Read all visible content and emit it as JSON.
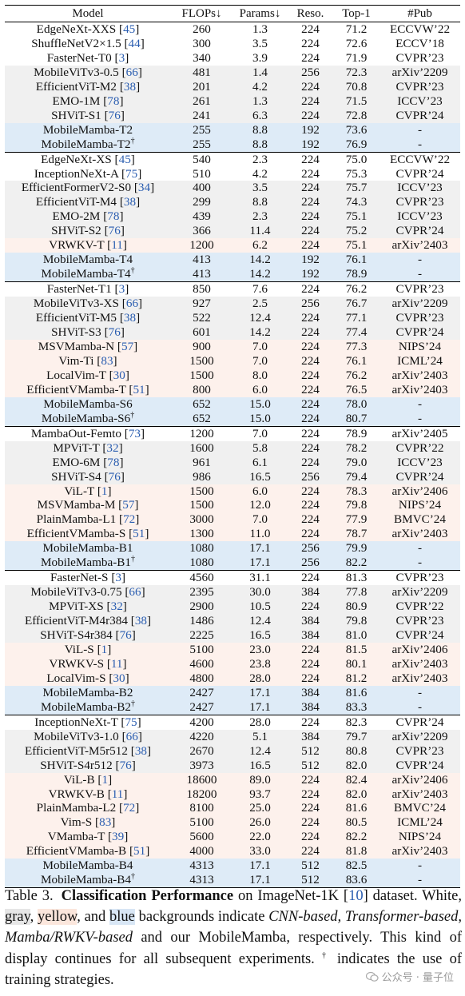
{
  "headers": [
    "Model",
    "FLOPs↓",
    "Params↓",
    "Reso.",
    "Top-1",
    "#Pub"
  ],
  "groups": [
    {
      "rows": [
        {
          "model": "EdgeNeXt-XXS",
          "cite": "45",
          "sup": "",
          "flops": "260",
          "params": "1.3",
          "reso": "224",
          "top1": "71.2",
          "pub": "ECCVW’22",
          "bg": "cnn",
          "bold": false
        },
        {
          "model": "ShuffleNetV2×1.5",
          "cite": "44",
          "sup": "",
          "flops": "300",
          "params": "3.5",
          "reso": "224",
          "top1": "72.6",
          "pub": "ECCV’18",
          "bg": "cnn",
          "bold": false
        },
        {
          "model": "FasterNet-T0",
          "cite": "3",
          "sup": "",
          "flops": "340",
          "params": "3.9",
          "reso": "224",
          "top1": "71.9",
          "pub": "CVPR’23",
          "bg": "cnn",
          "bold": false
        },
        {
          "model": "MobileViTv3-0.5",
          "cite": "66",
          "sup": "",
          "flops": "481",
          "params": "1.4",
          "reso": "256",
          "top1": "72.3",
          "pub": "arXiv’2209",
          "bg": "tr",
          "bold": false
        },
        {
          "model": "EfficientViT-M2",
          "cite": "38",
          "sup": "",
          "flops": "201",
          "params": "4.2",
          "reso": "224",
          "top1": "70.8",
          "pub": "CVPR’23",
          "bg": "tr",
          "bold": false
        },
        {
          "model": "EMO-1M",
          "cite": "78",
          "sup": "",
          "flops": "261",
          "params": "1.3",
          "reso": "224",
          "top1": "71.5",
          "pub": "ICCV’23",
          "bg": "tr",
          "bold": false
        },
        {
          "model": "SHViT-S1",
          "cite": "76",
          "sup": "",
          "flops": "241",
          "params": "6.3",
          "reso": "224",
          "top1": "72.8",
          "pub": "CVPR’24",
          "bg": "tr",
          "bold": false
        },
        {
          "model": "MobileMamba-T2",
          "cite": "",
          "sup": "",
          "flops": "255",
          "params": "8.8",
          "reso": "192",
          "top1": "73.6",
          "pub": "-",
          "bg": "ours",
          "bold": true
        },
        {
          "model": "MobileMamba-T2",
          "cite": "",
          "sup": "†",
          "flops": "255",
          "params": "8.8",
          "reso": "192",
          "top1": "76.9",
          "pub": "-",
          "bg": "ours",
          "bold": true
        }
      ]
    },
    {
      "rows": [
        {
          "model": "EdgeNeXt-XS",
          "cite": "45",
          "sup": "",
          "flops": "540",
          "params": "2.3",
          "reso": "224",
          "top1": "75.0",
          "pub": "ECCVW’22",
          "bg": "cnn",
          "bold": false
        },
        {
          "model": "InceptionNeXt-A",
          "cite": "75",
          "sup": "",
          "flops": "510",
          "params": "4.2",
          "reso": "224",
          "top1": "75.3",
          "pub": "CVPR’24",
          "bg": "cnn",
          "bold": false
        },
        {
          "model": "EfficientFormerV2-S0",
          "cite": "34",
          "sup": "",
          "flops": "400",
          "params": "3.5",
          "reso": "224",
          "top1": "75.7",
          "pub": "ICCV’23",
          "bg": "tr",
          "bold": false
        },
        {
          "model": "EfficientViT-M4",
          "cite": "38",
          "sup": "",
          "flops": "299",
          "params": "8.8",
          "reso": "224",
          "top1": "74.3",
          "pub": "CVPR’23",
          "bg": "tr",
          "bold": false
        },
        {
          "model": "EMO-2M",
          "cite": "78",
          "sup": "",
          "flops": "439",
          "params": "2.3",
          "reso": "224",
          "top1": "75.1",
          "pub": "ICCV’23",
          "bg": "tr",
          "bold": false
        },
        {
          "model": "SHViT-S2",
          "cite": "76",
          "sup": "",
          "flops": "366",
          "params": "11.4",
          "reso": "224",
          "top1": "75.2",
          "pub": "CVPR’24",
          "bg": "tr",
          "bold": false
        },
        {
          "model": "VRWKV-T",
          "cite": "11",
          "sup": "",
          "flops": "1200",
          "params": "6.2",
          "reso": "224",
          "top1": "75.1",
          "pub": "arXiv’2403",
          "bg": "mb",
          "bold": false
        },
        {
          "model": "MobileMamba-T4",
          "cite": "",
          "sup": "",
          "flops": "413",
          "params": "14.2",
          "reso": "192",
          "top1": "76.1",
          "pub": "-",
          "bg": "ours",
          "bold": true
        },
        {
          "model": "MobileMamba-T4",
          "cite": "",
          "sup": "†",
          "flops": "413",
          "params": "14.2",
          "reso": "192",
          "top1": "78.9",
          "pub": "-",
          "bg": "ours",
          "bold": true
        }
      ]
    },
    {
      "rows": [
        {
          "model": "FasterNet-T1",
          "cite": "3",
          "sup": "",
          "flops": "850",
          "params": "7.6",
          "reso": "224",
          "top1": "76.2",
          "pub": "CVPR’23",
          "bg": "cnn",
          "bold": false
        },
        {
          "model": "MobileViTv3-XS",
          "cite": "66",
          "sup": "",
          "flops": "927",
          "params": "2.5",
          "reso": "256",
          "top1": "76.7",
          "pub": "arXiv’2209",
          "bg": "tr",
          "bold": false
        },
        {
          "model": "EfficientViT-M5",
          "cite": "38",
          "sup": "",
          "flops": "522",
          "params": "12.4",
          "reso": "224",
          "top1": "77.1",
          "pub": "CVPR’23",
          "bg": "tr",
          "bold": false
        },
        {
          "model": "SHViT-S3",
          "cite": "76",
          "sup": "",
          "flops": "601",
          "params": "14.2",
          "reso": "224",
          "top1": "77.4",
          "pub": "CVPR’24",
          "bg": "tr",
          "bold": false
        },
        {
          "model": "MSVMamba-N",
          "cite": "57",
          "sup": "",
          "flops": "900",
          "params": "7.0",
          "reso": "224",
          "top1": "77.3",
          "pub": "NIPS’24",
          "bg": "mb",
          "bold": false
        },
        {
          "model": "Vim-Ti",
          "cite": "83",
          "sup": "",
          "flops": "1500",
          "params": "7.0",
          "reso": "224",
          "top1": "76.1",
          "pub": "ICML’24",
          "bg": "mb",
          "bold": false
        },
        {
          "model": "LocalVim-T",
          "cite": "30",
          "sup": "",
          "flops": "1500",
          "params": "8.0",
          "reso": "224",
          "top1": "76.2",
          "pub": "arXiv’2403",
          "bg": "mb",
          "bold": false
        },
        {
          "model": "EfficientVMamba-T",
          "cite": "51",
          "sup": "",
          "flops": "800",
          "params": "6.0",
          "reso": "224",
          "top1": "76.5",
          "pub": "arXiv’2403",
          "bg": "mb",
          "bold": false
        },
        {
          "model": "MobileMamba-S6",
          "cite": "",
          "sup": "",
          "flops": "652",
          "params": "15.0",
          "reso": "224",
          "top1": "78.0",
          "pub": "-",
          "bg": "ours",
          "bold": true
        },
        {
          "model": "MobileMamba-S6",
          "cite": "",
          "sup": "†",
          "flops": "652",
          "params": "15.0",
          "reso": "224",
          "top1": "80.7",
          "pub": "-",
          "bg": "ours",
          "bold": true
        }
      ]
    },
    {
      "rows": [
        {
          "model": "MambaOut-Femto",
          "cite": "73",
          "sup": "",
          "flops": "1200",
          "params": "7.0",
          "reso": "224",
          "top1": "78.9",
          "pub": "arXiv’2405",
          "bg": "cnn",
          "bold": false
        },
        {
          "model": "MPViT-T",
          "cite": "32",
          "sup": "",
          "flops": "1600",
          "params": "5.8",
          "reso": "224",
          "top1": "78.2",
          "pub": "CVPR’22",
          "bg": "tr",
          "bold": false
        },
        {
          "model": "EMO-6M",
          "cite": "78",
          "sup": "",
          "flops": "961",
          "params": "6.1",
          "reso": "224",
          "top1": "79.0",
          "pub": "ICCV’23",
          "bg": "tr",
          "bold": false
        },
        {
          "model": "SHViT-S4",
          "cite": "76",
          "sup": "",
          "flops": "986",
          "params": "16.5",
          "reso": "256",
          "top1": "79.4",
          "pub": "CVPR’24",
          "bg": "tr",
          "bold": false
        },
        {
          "model": "ViL-T",
          "cite": "1",
          "sup": "",
          "flops": "1500",
          "params": "6.0",
          "reso": "224",
          "top1": "78.3",
          "pub": "arXiv’2406",
          "bg": "mb",
          "bold": false
        },
        {
          "model": "MSVMamba-M",
          "cite": "57",
          "sup": "",
          "flops": "1500",
          "params": "12.0",
          "reso": "224",
          "top1": "79.8",
          "pub": "NIPS’24",
          "bg": "mb",
          "bold": false
        },
        {
          "model": "PlainMamba-L1",
          "cite": "72",
          "sup": "",
          "flops": "3000",
          "params": "7.0",
          "reso": "224",
          "top1": "77.9",
          "pub": "BMVC’24",
          "bg": "mb",
          "bold": false
        },
        {
          "model": "EfficientVMamba-S",
          "cite": "51",
          "sup": "",
          "flops": "1300",
          "params": "11.0",
          "reso": "224",
          "top1": "78.7",
          "pub": "arXiv’2403",
          "bg": "mb",
          "bold": false
        },
        {
          "model": "MobileMamba-B1",
          "cite": "",
          "sup": "",
          "flops": "1080",
          "params": "17.1",
          "reso": "256",
          "top1": "79.9",
          "pub": "-",
          "bg": "ours",
          "bold": true
        },
        {
          "model": "MobileMamba-B1",
          "cite": "",
          "sup": "†",
          "flops": "1080",
          "params": "17.1",
          "reso": "256",
          "top1": "82.2",
          "pub": "-",
          "bg": "ours",
          "bold": true
        }
      ]
    },
    {
      "rows": [
        {
          "model": "FasterNet-S",
          "cite": "3",
          "sup": "",
          "flops": "4560",
          "params": "31.1",
          "reso": "224",
          "top1": "81.3",
          "pub": "CVPR’23",
          "bg": "cnn",
          "bold": false
        },
        {
          "model": "MobileViTv3-0.75",
          "cite": "66",
          "sup": "",
          "flops": "2395",
          "params": "30.0",
          "reso": "384",
          "top1": "77.8",
          "pub": "arXiv’2209",
          "bg": "tr",
          "bold": false
        },
        {
          "model": "MPViT-XS",
          "cite": "32",
          "sup": "",
          "flops": "2900",
          "params": "10.5",
          "reso": "224",
          "top1": "80.9",
          "pub": "CVPR’22",
          "bg": "tr",
          "bold": false
        },
        {
          "model": "EfficientViT-M4r384",
          "cite": "38",
          "sup": "",
          "flops": "1486",
          "params": "12.4",
          "reso": "384",
          "top1": "79.8",
          "pub": "CVPR’23",
          "bg": "tr",
          "bold": false
        },
        {
          "model": "SHViT-S4r384",
          "cite": "76",
          "sup": "",
          "flops": "2225",
          "params": "16.5",
          "reso": "384",
          "top1": "81.0",
          "pub": "CVPR’24",
          "bg": "tr",
          "bold": false
        },
        {
          "model": "ViL-S",
          "cite": "1",
          "sup": "",
          "flops": "5100",
          "params": "23.0",
          "reso": "224",
          "top1": "81.5",
          "pub": "arXiv’2406",
          "bg": "mb",
          "bold": false
        },
        {
          "model": "VRWKV-S",
          "cite": "11",
          "sup": "",
          "flops": "4600",
          "params": "23.8",
          "reso": "224",
          "top1": "80.1",
          "pub": "arXiv’2403",
          "bg": "mb",
          "bold": false
        },
        {
          "model": "LocalVim-S",
          "cite": "30",
          "sup": "",
          "flops": "4800",
          "params": "28.0",
          "reso": "224",
          "top1": "81.2",
          "pub": "arXiv’2403",
          "bg": "mb",
          "bold": false
        },
        {
          "model": "MobileMamba-B2",
          "cite": "",
          "sup": "",
          "flops": "2427",
          "params": "17.1",
          "reso": "384",
          "top1": "81.6",
          "pub": "-",
          "bg": "ours",
          "bold": true
        },
        {
          "model": "MobileMamba-B2",
          "cite": "",
          "sup": "†",
          "flops": "2427",
          "params": "17.1",
          "reso": "384",
          "top1": "83.3",
          "pub": "-",
          "bg": "ours",
          "bold": true
        }
      ]
    },
    {
      "rows": [
        {
          "model": "InceptionNeXt-T",
          "cite": "75",
          "sup": "",
          "flops": "4200",
          "params": "28.0",
          "reso": "224",
          "top1": "82.3",
          "pub": "CVPR’24",
          "bg": "cnn",
          "bold": false
        },
        {
          "model": "MobileViTv3-1.0",
          "cite": "66",
          "sup": "",
          "flops": "4220",
          "params": "5.1",
          "reso": "384",
          "top1": "79.7",
          "pub": "arXiv’2209",
          "bg": "tr",
          "bold": false
        },
        {
          "model": "EfficientViT-M5r512",
          "cite": "38",
          "sup": "",
          "flops": "2670",
          "params": "12.4",
          "reso": "512",
          "top1": "80.8",
          "pub": "CVPR’23",
          "bg": "tr",
          "bold": false
        },
        {
          "model": "SHViT-S4r512",
          "cite": "76",
          "sup": "",
          "flops": "3973",
          "params": "16.5",
          "reso": "512",
          "top1": "82.0",
          "pub": "CVPR’24",
          "bg": "tr",
          "bold": false
        },
        {
          "model": "ViL-B",
          "cite": "1",
          "sup": "",
          "flops": "18600",
          "params": "89.0",
          "reso": "224",
          "top1": "82.4",
          "pub": "arXiv’2406",
          "bg": "mb",
          "bold": false
        },
        {
          "model": "VRWKV-B",
          "cite": "11",
          "sup": "",
          "flops": "18200",
          "params": "93.7",
          "reso": "224",
          "top1": "82.0",
          "pub": "arXiv’2403",
          "bg": "mb",
          "bold": false
        },
        {
          "model": "PlainMamba-L2",
          "cite": "72",
          "sup": "",
          "flops": "8100",
          "params": "25.0",
          "reso": "224",
          "top1": "81.6",
          "pub": "BMVC’24",
          "bg": "mb",
          "bold": false
        },
        {
          "model": "Vim-S",
          "cite": "83",
          "sup": "",
          "flops": "5100",
          "params": "26.0",
          "reso": "224",
          "top1": "80.5",
          "pub": "ICML’24",
          "bg": "mb",
          "bold": false
        },
        {
          "model": "VMamba-T",
          "cite": "39",
          "sup": "",
          "flops": "5600",
          "params": "22.0",
          "reso": "224",
          "top1": "82.2",
          "pub": "NIPS’24",
          "bg": "mb",
          "bold": false
        },
        {
          "model": "EfficientVMamba-B",
          "cite": "51",
          "sup": "",
          "flops": "4000",
          "params": "33.0",
          "reso": "224",
          "top1": "81.8",
          "pub": "arXiv’2403",
          "bg": "mb",
          "bold": false
        },
        {
          "model": "MobileMamba-B4",
          "cite": "",
          "sup": "",
          "flops": "4313",
          "params": "17.1",
          "reso": "512",
          "top1": "82.5",
          "pub": "-",
          "bg": "ours",
          "bold": true
        },
        {
          "model": "MobileMamba-B4",
          "cite": "",
          "sup": "†",
          "flops": "4313",
          "params": "17.1",
          "reso": "512",
          "top1": "83.6",
          "pub": "-",
          "bg": "ours",
          "bold": true
        }
      ]
    }
  ],
  "caption": {
    "label": "Table 3.",
    "title": "Classification Performance",
    "t1": " on ImageNet-1K [",
    "cite": "10",
    "t2": "] dataset. White, ",
    "gray": "gray",
    "t3": ", ",
    "yellow": "yellow",
    "t4": ", and ",
    "blue": "blue",
    "t5": " backgrounds indicate ",
    "italic": "CNN-based, Transformer-based, Mamba/RWKV-based",
    "t6": " and our MobileMamba, respectively. This kind of display continues for all subsequent experiments. ",
    "dagger": "†",
    "t7": " indicates the use of training strategies."
  },
  "watermark": "公众号 · 量子位",
  "colors": {
    "cnn": "#ffffff",
    "transformer": "#f0f0f0",
    "mamba_rwkv": "#fdf1ec",
    "ours": "#deebf7",
    "cite": "#2a5db0"
  }
}
